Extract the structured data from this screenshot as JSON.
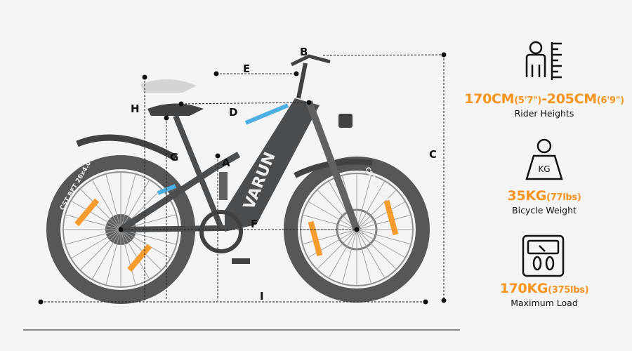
{
  "colors": {
    "accent": "#f7941d",
    "frame": "#3d4043",
    "tire": "#4a4a4a",
    "highlight": "#3fa9e0",
    "dimension": "#222222"
  },
  "bike": {
    "brand": "VARUN",
    "tire_text": "CST BFT 26x4.0"
  },
  "dimensions": [
    {
      "id": "A",
      "label": "A"
    },
    {
      "id": "B",
      "label": "B"
    },
    {
      "id": "C",
      "label": "C"
    },
    {
      "id": "D",
      "label": "D"
    },
    {
      "id": "E",
      "label": "E"
    },
    {
      "id": "F",
      "label": "F"
    },
    {
      "id": "G",
      "label": "G"
    },
    {
      "id": "H",
      "label": "H"
    },
    {
      "id": "I",
      "label": "I"
    }
  ],
  "specs": [
    {
      "icon": "person-ruler-icon",
      "value_main1": "170CM",
      "value_sub1": "(5'7\")",
      "value_main2": "-205CM",
      "value_sub2": "(6'9\")",
      "label": "Rider Heights"
    },
    {
      "icon": "kettlebell-kg-icon",
      "icon_text": "KG",
      "value_main1": "35KG",
      "value_sub1": "(77lbs)",
      "label": "Bicycle Weight"
    },
    {
      "icon": "scale-icon",
      "value_main1": "170KG",
      "value_sub1": "(375lbs)",
      "label": "Maximum Load"
    }
  ]
}
